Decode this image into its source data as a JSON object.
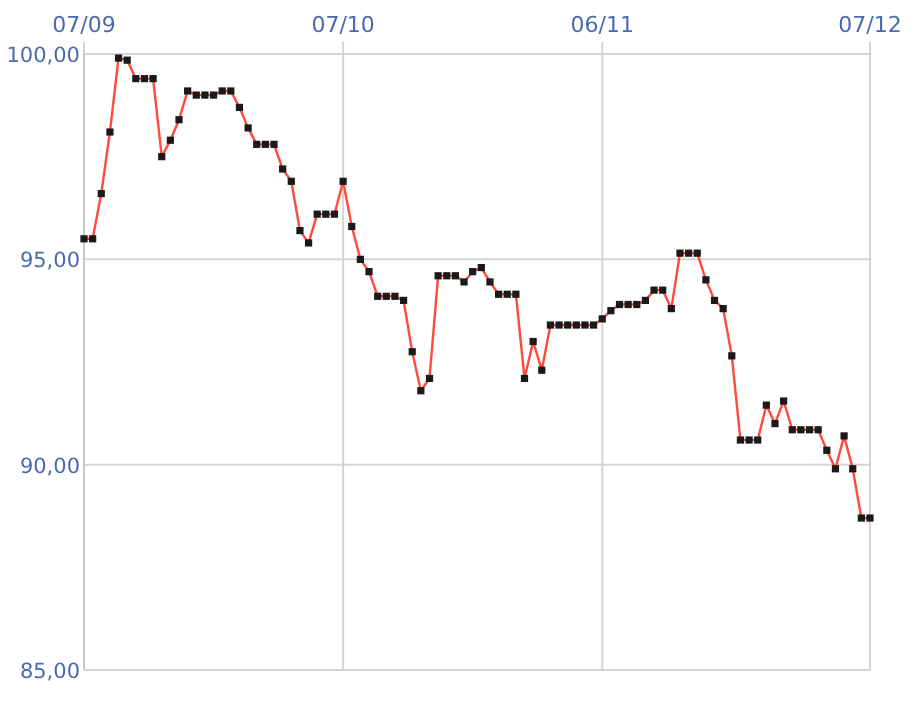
{
  "chart_data": {
    "type": "line",
    "x": [
      "--09-07",
      "--09-08",
      "--09-09",
      "--09-10",
      "--09-11",
      "--09-12",
      "--09-13",
      "--09-14",
      "--09-15",
      "--09-16",
      "--09-17",
      "--09-18",
      "--09-19",
      "--09-20",
      "--09-21",
      "--09-22",
      "--09-23",
      "--09-24",
      "--09-25",
      "--09-26",
      "--09-27",
      "--09-28",
      "--09-29",
      "--09-30",
      "--10-01",
      "--10-02",
      "--10-03",
      "--10-04",
      "--10-05",
      "--10-06",
      "--10-07",
      "--10-08",
      "--10-09",
      "--10-10",
      "--10-11",
      "--10-12",
      "--10-13",
      "--10-14",
      "--10-15",
      "--10-16",
      "--10-17",
      "--10-18",
      "--10-19",
      "--10-20",
      "--10-21",
      "--10-22",
      "--10-23",
      "--10-24",
      "--10-25",
      "--10-26",
      "--10-27",
      "--10-28",
      "--10-29",
      "--10-30",
      "--10-31",
      "--11-01",
      "--11-02",
      "--11-03",
      "--11-04",
      "--11-05",
      "--11-06",
      "--11-07",
      "--11-08",
      "--11-09",
      "--11-10",
      "--11-11",
      "--11-12",
      "--11-13",
      "--11-14",
      "--11-15",
      "--11-16",
      "--11-17",
      "--11-18",
      "--11-19",
      "--11-20",
      "--11-21",
      "--11-22",
      "--11-23",
      "--11-24",
      "--11-25",
      "--11-26",
      "--11-27",
      "--11-28",
      "--11-29",
      "--11-30",
      "--12-01",
      "--12-02",
      "--12-03",
      "--12-04",
      "--12-05",
      "--12-06",
      "--12-07"
    ],
    "series": [
      {
        "color": "#ff4a3d",
        "values": [
          95.5,
          95.5,
          96.6,
          98.1,
          99.9,
          99.85,
          99.4,
          99.4,
          99.4,
          97.5,
          97.9,
          98.4,
          99.1,
          99.0,
          99.0,
          99.0,
          99.1,
          99.1,
          98.7,
          98.2,
          97.8,
          97.8,
          97.8,
          97.2,
          96.9,
          95.7,
          95.4,
          96.1,
          96.1,
          96.1,
          96.9,
          95.8,
          95.0,
          94.7,
          94.1,
          94.1,
          94.1,
          94.0,
          92.75,
          91.8,
          92.1,
          94.6,
          94.6,
          94.6,
          94.45,
          94.7,
          94.8,
          94.45,
          94.15,
          94.15,
          94.15,
          92.1,
          93.0,
          92.3,
          93.4,
          93.4,
          93.4,
          93.4,
          93.4,
          93.4,
          93.55,
          93.75,
          93.9,
          93.9,
          93.9,
          94.0,
          94.25,
          94.25,
          93.8,
          95.15,
          95.15,
          95.15,
          94.5,
          94.0,
          93.8,
          92.65,
          90.6,
          90.6,
          90.6,
          91.45,
          91.0,
          91.55,
          90.85,
          90.85,
          90.85,
          90.85,
          90.35,
          89.9,
          90.7,
          89.9,
          88.7,
          88.7
        ]
      }
    ],
    "xlim": [
      "--09-07",
      "--12-07"
    ],
    "xticks": [
      {
        "value": "--09-07",
        "label": "07/09"
      },
      {
        "value": "--10-07",
        "label": "07/10"
      },
      {
        "value": "--11-06",
        "label": "06/11"
      },
      {
        "value": "--12-07",
        "label": "07/12"
      }
    ],
    "ylim": [
      85,
      100
    ],
    "yticks": [
      {
        "value": 85,
        "label": "85,00"
      },
      {
        "value": 90,
        "label": "90,00"
      },
      {
        "value": 95,
        "label": "95,00"
      },
      {
        "value": 100,
        "label": "100,00"
      }
    ],
    "grid": true,
    "marker": "square",
    "line_style": "solid"
  }
}
